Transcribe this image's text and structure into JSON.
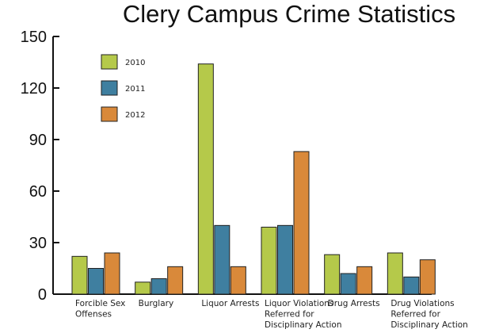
{
  "chart_data": {
    "type": "bar",
    "title": "Clery Campus Crime Statistics",
    "xlabel": "",
    "ylabel": "",
    "ylim": [
      0,
      150
    ],
    "yticks": [
      0,
      30,
      60,
      90,
      120,
      150
    ],
    "grid": false,
    "legend_position": "top-left",
    "categories": [
      [
        "Forcible Sex",
        "Offenses"
      ],
      [
        "Burglary"
      ],
      [
        "Liquor Arrests"
      ],
      [
        "Liquor Violations",
        "Referred for",
        "Disciplinary Action"
      ],
      [
        "Drug Arrests"
      ],
      [
        "Drug Violations",
        "Referred for",
        "Disciplinary Action"
      ]
    ],
    "series": [
      {
        "name": "2010",
        "color": "#b5c94a",
        "values": [
          22,
          7,
          134,
          39,
          23,
          24
        ]
      },
      {
        "name": "2011",
        "color": "#3f7fa0",
        "values": [
          15,
          9,
          40,
          40,
          12,
          10
        ]
      },
      {
        "name": "2012",
        "color": "#d9893a",
        "values": [
          24,
          16,
          16,
          83,
          16,
          20
        ]
      }
    ]
  }
}
